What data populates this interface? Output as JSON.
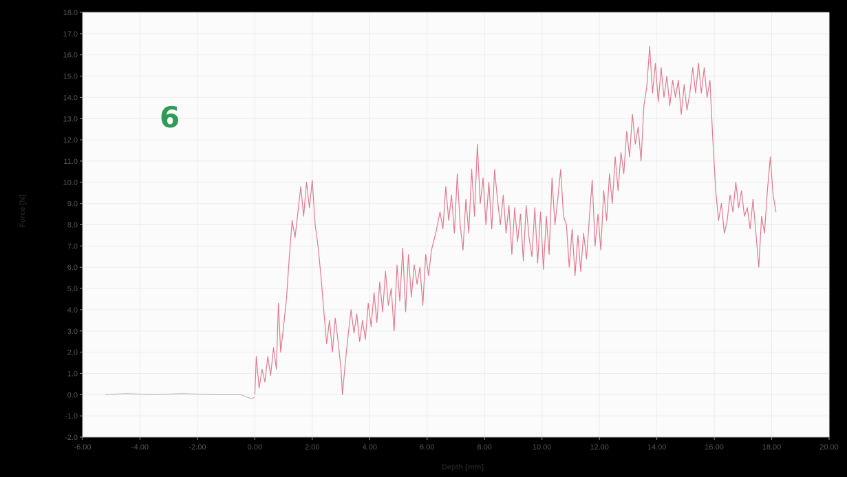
{
  "panel_label": "6",
  "colors": {
    "background": "#000000",
    "plot_bg": "#fbfbfb",
    "grid": "#ececec",
    "baseline_series": "#b8b8b8",
    "force_series": "#e07a8e",
    "panel_label": "#2e9c57"
  },
  "chart_data": {
    "type": "line",
    "title": "",
    "xlabel": "Depth [mm]",
    "ylabel": "Force [N]",
    "xlim": [
      -6,
      20
    ],
    "ylim": [
      -2,
      18
    ],
    "xticks": [
      -6,
      -4,
      -2,
      0,
      2,
      4,
      6,
      8,
      10,
      12,
      14,
      16,
      18,
      20
    ],
    "xtick_labels": [
      "-6.00",
      "-4.00",
      "-2.00",
      "0.00",
      "2.00",
      "4.00",
      "6.00",
      "8.00",
      "10.00",
      "12.00",
      "14.00",
      "16.00",
      "18.00",
      "20.00"
    ],
    "yticks": [
      -2,
      -1,
      0,
      1,
      2,
      3,
      4,
      5,
      6,
      7,
      8,
      9,
      10,
      11,
      12,
      13,
      14,
      15,
      16,
      17,
      18
    ],
    "ytick_labels": [
      "-2.0",
      "-1.0",
      "0.0",
      "1.0",
      "2.0",
      "3.0",
      "4.0",
      "5.0",
      "6.0",
      "7.0",
      "8.0",
      "9.0",
      "10.0",
      "11.0",
      "12.0",
      "13.0",
      "14.0",
      "15.0",
      "16.0",
      "17.0",
      "18.0"
    ],
    "grid": true,
    "legend": "none",
    "series": [
      {
        "color": "#b8b8b8",
        "points": [
          [
            -5.2,
            0.0
          ],
          [
            -4.5,
            0.05
          ],
          [
            -3.5,
            0.0
          ],
          [
            -2.5,
            0.05
          ],
          [
            -1.5,
            0.0
          ],
          [
            -0.5,
            0.0
          ],
          [
            -0.1,
            -0.2
          ],
          [
            0.0,
            -0.1
          ]
        ]
      },
      {
        "color": "#e07a8e",
        "points": [
          [
            0.0,
            0.0
          ],
          [
            0.05,
            1.8
          ],
          [
            0.15,
            0.3
          ],
          [
            0.25,
            1.2
          ],
          [
            0.35,
            0.6
          ],
          [
            0.45,
            1.8
          ],
          [
            0.55,
            0.9
          ],
          [
            0.65,
            2.2
          ],
          [
            0.75,
            1.2
          ],
          [
            0.82,
            4.3
          ],
          [
            0.9,
            2.0
          ],
          [
            1.0,
            3.2
          ],
          [
            1.1,
            4.5
          ],
          [
            1.2,
            6.5
          ],
          [
            1.3,
            8.2
          ],
          [
            1.4,
            7.4
          ],
          [
            1.5,
            8.6
          ],
          [
            1.6,
            9.8
          ],
          [
            1.7,
            8.4
          ],
          [
            1.8,
            10.0
          ],
          [
            1.9,
            8.8
          ],
          [
            2.0,
            10.1
          ],
          [
            2.1,
            8.0
          ],
          [
            2.2,
            7.0
          ],
          [
            2.3,
            5.6
          ],
          [
            2.4,
            4.0
          ],
          [
            2.5,
            2.4
          ],
          [
            2.6,
            3.5
          ],
          [
            2.7,
            2.0
          ],
          [
            2.8,
            3.6
          ],
          [
            2.9,
            2.5
          ],
          [
            3.0,
            1.2
          ],
          [
            3.05,
            0.0
          ],
          [
            3.15,
            1.5
          ],
          [
            3.25,
            2.8
          ],
          [
            3.35,
            4.0
          ],
          [
            3.45,
            2.9
          ],
          [
            3.55,
            3.8
          ],
          [
            3.65,
            2.5
          ],
          [
            3.75,
            3.5
          ],
          [
            3.85,
            2.6
          ],
          [
            3.95,
            4.3
          ],
          [
            4.05,
            3.2
          ],
          [
            4.15,
            4.8
          ],
          [
            4.25,
            3.4
          ],
          [
            4.35,
            5.3
          ],
          [
            4.45,
            3.9
          ],
          [
            4.55,
            5.8
          ],
          [
            4.65,
            4.2
          ],
          [
            4.75,
            5.0
          ],
          [
            4.85,
            3.0
          ],
          [
            4.95,
            6.1
          ],
          [
            5.05,
            4.4
          ],
          [
            5.15,
            6.9
          ],
          [
            5.25,
            3.9
          ],
          [
            5.35,
            6.6
          ],
          [
            5.45,
            4.6
          ],
          [
            5.55,
            6.1
          ],
          [
            5.65,
            5.2
          ],
          [
            5.75,
            6.0
          ],
          [
            5.85,
            4.2
          ],
          [
            5.95,
            6.6
          ],
          [
            6.05,
            5.6
          ],
          [
            6.15,
            6.8
          ],
          [
            6.3,
            7.6
          ],
          [
            6.45,
            8.6
          ],
          [
            6.55,
            7.8
          ],
          [
            6.65,
            9.8
          ],
          [
            6.75,
            8.2
          ],
          [
            6.85,
            9.4
          ],
          [
            6.95,
            7.6
          ],
          [
            7.05,
            10.4
          ],
          [
            7.15,
            8.0
          ],
          [
            7.25,
            6.8
          ],
          [
            7.35,
            9.2
          ],
          [
            7.45,
            7.6
          ],
          [
            7.55,
            10.6
          ],
          [
            7.65,
            8.4
          ],
          [
            7.75,
            11.8
          ],
          [
            7.85,
            9.0
          ],
          [
            7.95,
            10.2
          ],
          [
            8.05,
            8.0
          ],
          [
            8.15,
            10.0
          ],
          [
            8.25,
            7.8
          ],
          [
            8.35,
            10.6
          ],
          [
            8.45,
            9.2
          ],
          [
            8.55,
            8.0
          ],
          [
            8.65,
            9.4
          ],
          [
            8.75,
            7.6
          ],
          [
            8.85,
            8.9
          ],
          [
            8.95,
            6.6
          ],
          [
            9.05,
            8.8
          ],
          [
            9.15,
            7.2
          ],
          [
            9.25,
            8.5
          ],
          [
            9.35,
            6.3
          ],
          [
            9.45,
            8.9
          ],
          [
            9.55,
            7.4
          ],
          [
            9.65,
            6.5
          ],
          [
            9.75,
            8.8
          ],
          [
            9.85,
            6.2
          ],
          [
            9.95,
            8.6
          ],
          [
            10.05,
            5.9
          ],
          [
            10.15,
            8.4
          ],
          [
            10.25,
            6.6
          ],
          [
            10.35,
            10.2
          ],
          [
            10.45,
            8.0
          ],
          [
            10.55,
            9.2
          ],
          [
            10.65,
            10.6
          ],
          [
            10.75,
            8.4
          ],
          [
            10.85,
            8.0
          ],
          [
            10.95,
            6.0
          ],
          [
            11.05,
            7.8
          ],
          [
            11.15,
            5.6
          ],
          [
            11.25,
            7.5
          ],
          [
            11.35,
            5.8
          ],
          [
            11.45,
            7.6
          ],
          [
            11.55,
            6.4
          ],
          [
            11.65,
            8.3
          ],
          [
            11.75,
            10.1
          ],
          [
            11.85,
            7.0
          ],
          [
            11.95,
            8.5
          ],
          [
            12.05,
            6.8
          ],
          [
            12.15,
            9.6
          ],
          [
            12.25,
            8.2
          ],
          [
            12.35,
            10.4
          ],
          [
            12.45,
            9.0
          ],
          [
            12.55,
            11.2
          ],
          [
            12.65,
            9.6
          ],
          [
            12.75,
            11.4
          ],
          [
            12.85,
            10.4
          ],
          [
            12.95,
            12.4
          ],
          [
            13.05,
            11.2
          ],
          [
            13.15,
            13.2
          ],
          [
            13.25,
            11.8
          ],
          [
            13.35,
            12.6
          ],
          [
            13.45,
            11.0
          ],
          [
            13.55,
            13.6
          ],
          [
            13.65,
            14.5
          ],
          [
            13.75,
            16.4
          ],
          [
            13.85,
            14.2
          ],
          [
            13.95,
            15.6
          ],
          [
            14.05,
            13.8
          ],
          [
            14.15,
            15.4
          ],
          [
            14.25,
            14.0
          ],
          [
            14.35,
            15.0
          ],
          [
            14.45,
            13.6
          ],
          [
            14.55,
            14.8
          ],
          [
            14.65,
            14.0
          ],
          [
            14.75,
            14.8
          ],
          [
            14.85,
            13.2
          ],
          [
            14.95,
            14.6
          ],
          [
            15.05,
            13.4
          ],
          [
            15.15,
            14.2
          ],
          [
            15.25,
            15.4
          ],
          [
            15.35,
            14.2
          ],
          [
            15.45,
            15.6
          ],
          [
            15.55,
            14.2
          ],
          [
            15.65,
            15.4
          ],
          [
            15.75,
            14.0
          ],
          [
            15.85,
            14.8
          ],
          [
            15.95,
            12.0
          ],
          [
            16.05,
            9.6
          ],
          [
            16.15,
            8.2
          ],
          [
            16.25,
            9.0
          ],
          [
            16.35,
            7.6
          ],
          [
            16.45,
            8.2
          ],
          [
            16.55,
            9.4
          ],
          [
            16.65,
            8.6
          ],
          [
            16.75,
            10.0
          ],
          [
            16.85,
            8.8
          ],
          [
            16.95,
            9.6
          ],
          [
            17.05,
            8.4
          ],
          [
            17.15,
            8.8
          ],
          [
            17.25,
            7.8
          ],
          [
            17.35,
            9.2
          ],
          [
            17.45,
            7.6
          ],
          [
            17.55,
            6.0
          ],
          [
            17.65,
            8.4
          ],
          [
            17.75,
            7.6
          ],
          [
            17.85,
            9.6
          ],
          [
            17.95,
            11.2
          ],
          [
            18.05,
            9.4
          ],
          [
            18.15,
            8.6
          ]
        ]
      }
    ]
  }
}
